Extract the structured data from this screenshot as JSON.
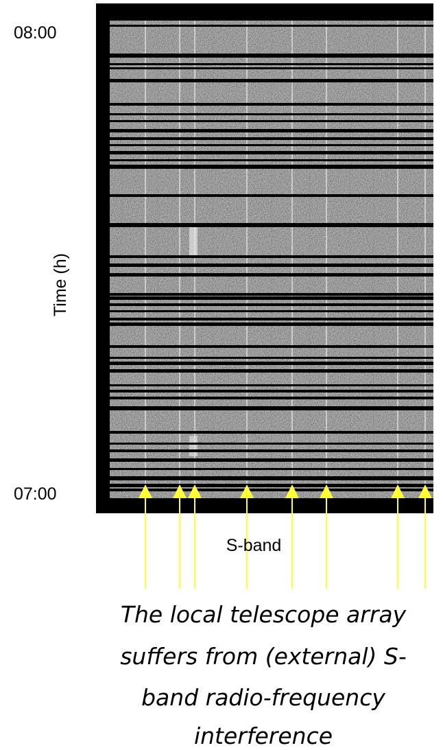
{
  "y_axis": {
    "label": "Time (h)",
    "ticks": [
      "08:00",
      "07:00"
    ]
  },
  "x_axis": {
    "label": "S-band"
  },
  "caption": {
    "lines": [
      "The local telescope array",
      "suffers from (external) S-",
      "band radio-frequency",
      "interference"
    ]
  }
}
